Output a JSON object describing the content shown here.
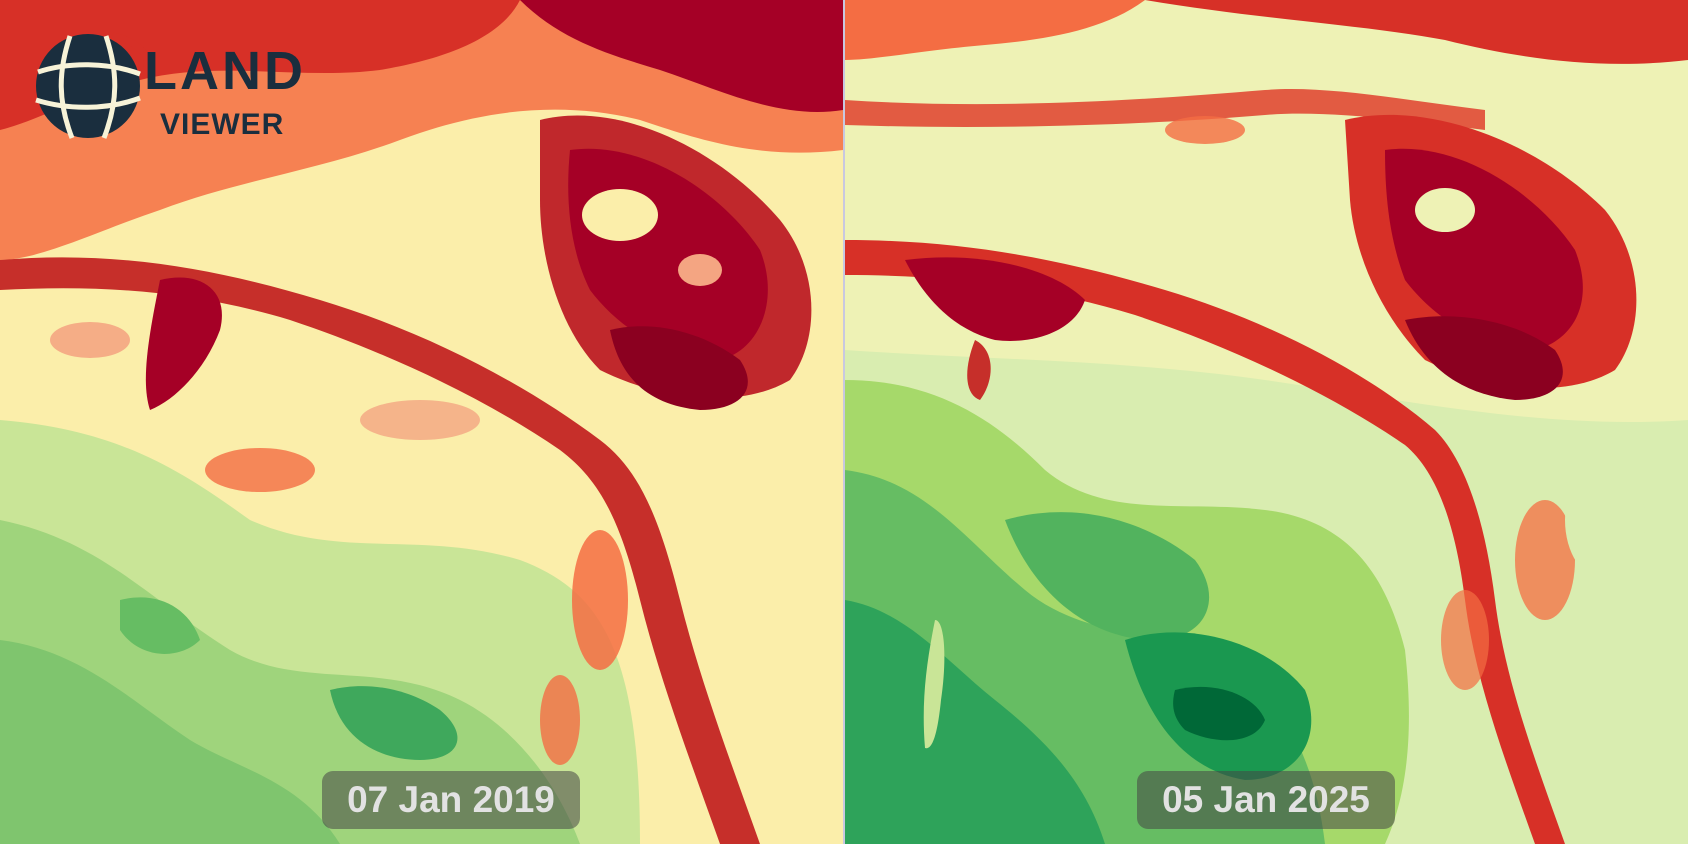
{
  "logo": {
    "word1": "LAND",
    "word2": "VIEWER"
  },
  "panels": [
    {
      "id": "left",
      "date": "07 Jan 2019"
    },
    {
      "id": "right",
      "date": "05 Jan 2025"
    }
  ],
  "palette": {
    "very_low": "#a50026",
    "low": "#d73027",
    "mid_low": "#f46d43",
    "neutral": "#fee08b",
    "pale": "#ffffbf",
    "mid_high": "#a6d96a",
    "high": "#66bd63",
    "very_high": "#1a9850",
    "max": "#006837"
  },
  "divider_color": "#c8c8e0"
}
